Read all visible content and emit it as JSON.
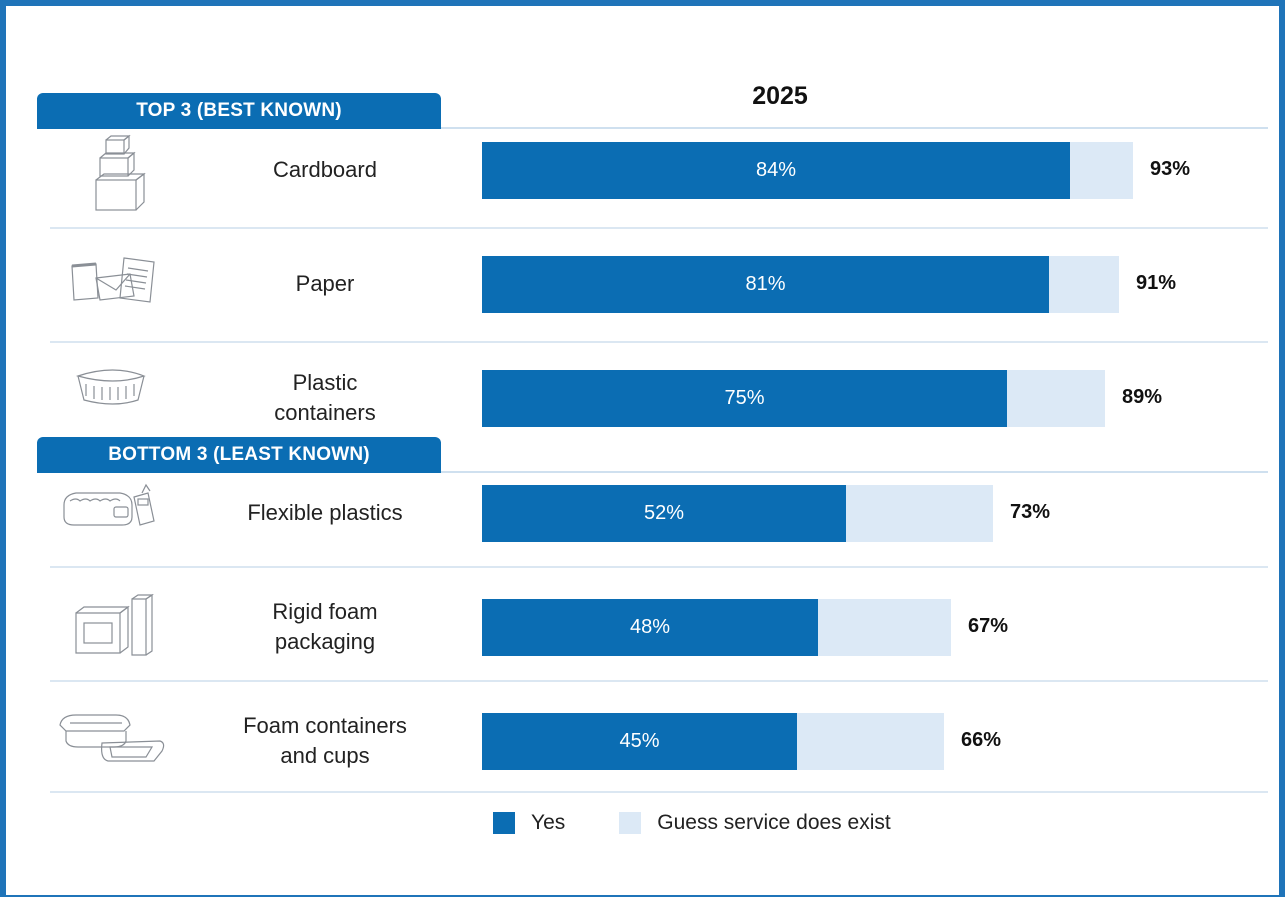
{
  "chart_data": {
    "type": "bar",
    "orientation": "horizontal",
    "stacked": true,
    "title": "2025",
    "groups": [
      {
        "label": "TOP 3 (BEST KNOWN)",
        "categories": [
          "Cardboard",
          "Paper",
          "Plastic containers"
        ]
      },
      {
        "label": "BOTTOM 3 (LEAST KNOWN)",
        "categories": [
          "Flexible plastics",
          "Rigid foam packaging",
          "Foam containers and cups"
        ]
      }
    ],
    "categories": [
      "Cardboard",
      "Paper",
      "Plastic containers",
      "Flexible plastics",
      "Rigid foam packaging",
      "Foam containers and cups"
    ],
    "category_lines": [
      [
        "Cardboard"
      ],
      [
        "Paper"
      ],
      [
        "Plastic",
        "containers"
      ],
      [
        "Flexible plastics"
      ],
      [
        "Rigid foam",
        "packaging"
      ],
      [
        "Foam containers",
        "and cups"
      ]
    ],
    "icons": [
      "cardboard-boxes-icon",
      "paper-documents-icon",
      "plastic-container-icon",
      "flexible-plastics-icon",
      "rigid-foam-packaging-icon",
      "foam-container-icon"
    ],
    "series": [
      {
        "name": "Yes",
        "values": [
          84,
          81,
          75,
          52,
          48,
          45
        ],
        "labels": [
          "84%",
          "81%",
          "75%",
          "52%",
          "48%",
          "45%"
        ],
        "color": "#0b6db3"
      },
      {
        "name": "Guess service does exist",
        "values": [
          9,
          10,
          14,
          21,
          19,
          21
        ],
        "color": "#dce9f6"
      }
    ],
    "totals": [
      93,
      91,
      89,
      73,
      67,
      66
    ],
    "total_labels": [
      "93%",
      "91%",
      "89%",
      "73%",
      "67%",
      "66%"
    ],
    "xlim": [
      0,
      100
    ],
    "legend_position": "bottom",
    "grid": false
  }
}
